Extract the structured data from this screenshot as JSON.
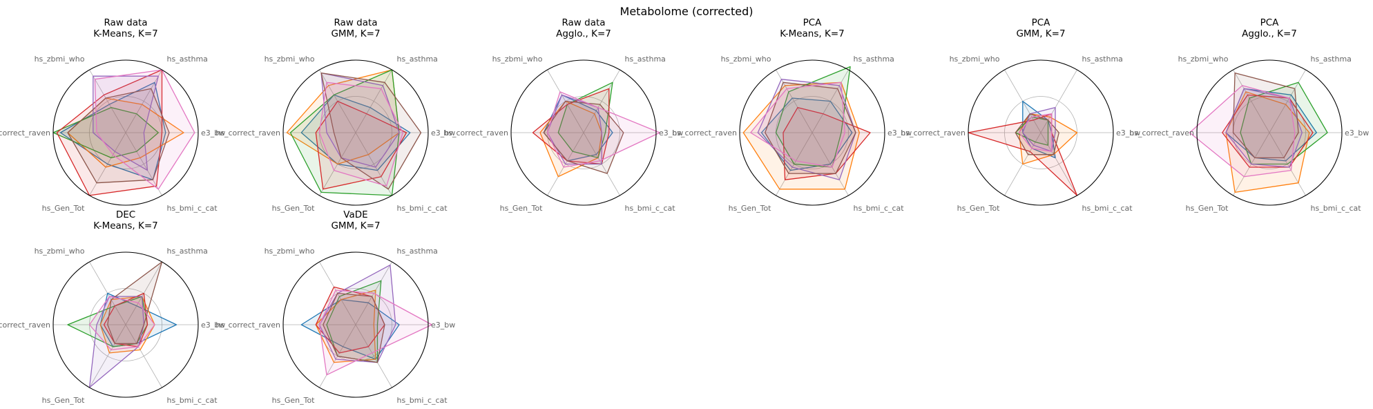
{
  "figure": {
    "title": "Metabolome (corrected)"
  },
  "chart_data": {
    "type": "radar",
    "axes": [
      "e3_bw",
      "hs_asthma",
      "hs_zbmi_who",
      "hs_correct_raven",
      "hs_Gen_Tot",
      "hs_bmi_c_cat"
    ],
    "grid": true,
    "series_colors": [
      "#1f77b4",
      "#ff7f0e",
      "#2ca02c",
      "#d62728",
      "#9467bd",
      "#8c564b",
      "#e377c2"
    ],
    "subplots": [
      {
        "title": [
          "Raw data",
          "K-Means, K=7"
        ],
        "series": [
          {
            "values": [
              0.55,
              0.8,
              0.45,
              0.9,
              0.5,
              0.75
            ]
          },
          {
            "values": [
              0.8,
              0.45,
              0.55,
              0.8,
              0.55,
              0.4
            ]
          },
          {
            "values": [
              0.45,
              0.3,
              0.4,
              1.0,
              0.4,
              0.3
            ]
          },
          {
            "values": [
              0.5,
              1.0,
              0.6,
              0.95,
              1.0,
              0.85
            ]
          },
          {
            "values": [
              0.25,
              0.9,
              0.9,
              0.45,
              0.3,
              0.6
            ]
          },
          {
            "values": [
              0.6,
              0.7,
              0.55,
              0.8,
              0.8,
              0.75
            ]
          },
          {
            "values": [
              0.95,
              1.0,
              0.85,
              0.4,
              0.35,
              0.9
            ]
          }
        ]
      },
      {
        "title": [
          "Raw data",
          "GMM, K=7"
        ],
        "series": [
          {
            "values": [
              0.75,
              0.4,
              0.6,
              0.75,
              0.5,
              0.6
            ]
          },
          {
            "values": [
              0.6,
              1.0,
              0.75,
              0.95,
              0.5,
              0.35
            ]
          },
          {
            "values": [
              0.6,
              1.0,
              0.6,
              0.9,
              0.95,
              1.0
            ]
          },
          {
            "values": [
              0.7,
              0.3,
              0.5,
              0.55,
              0.9,
              0.7
            ]
          },
          {
            "values": [
              0.6,
              0.75,
              0.95,
              0.4,
              0.4,
              0.55
            ]
          },
          {
            "values": [
              0.9,
              0.8,
              0.95,
              0.3,
              0.4,
              0.9
            ]
          },
          {
            "values": [
              0.65,
              0.7,
              0.8,
              0.5,
              0.6,
              0.85
            ]
          }
        ]
      },
      {
        "title": [
          "Raw data",
          "Agglo., K=7"
        ],
        "series": [
          {
            "values": [
              0.4,
              0.35,
              0.6,
              0.55,
              0.45,
              0.35
            ]
          },
          {
            "values": [
              0.25,
              0.3,
              0.5,
              0.6,
              0.7,
              0.4
            ]
          },
          {
            "values": [
              0.3,
              0.8,
              0.45,
              0.35,
              0.3,
              0.4
            ]
          },
          {
            "values": [
              0.35,
              0.7,
              0.45,
              0.7,
              0.45,
              0.5
            ]
          },
          {
            "values": [
              0.25,
              0.4,
              0.6,
              0.5,
              0.5,
              0.5
            ]
          },
          {
            "values": [
              0.55,
              0.45,
              0.5,
              0.55,
              0.45,
              0.65
            ]
          },
          {
            "values": [
              1.05,
              0.4,
              0.65,
              0.5,
              0.55,
              0.45
            ]
          }
        ]
      },
      {
        "title": [
          "PCA",
          "K-Means, K=7"
        ],
        "series": [
          {
            "values": [
              0.55,
              0.5,
              0.55,
              0.7,
              0.6,
              0.5
            ]
          },
          {
            "values": [
              0.65,
              0.8,
              0.75,
              0.95,
              0.9,
              0.9
            ]
          },
          {
            "values": [
              0.4,
              1.05,
              0.65,
              0.5,
              0.5,
              0.55
            ]
          },
          {
            "values": [
              0.8,
              0.3,
              0.4,
              0.4,
              0.75,
              0.65
            ]
          },
          {
            "values": [
              0.6,
              0.75,
              0.85,
              0.75,
              0.55,
              0.75
            ]
          },
          {
            "values": [
              0.6,
              0.7,
              0.8,
              0.65,
              0.65,
              0.65
            ]
          },
          {
            "values": [
              0.45,
              0.8,
              0.7,
              0.85,
              0.45,
              0.55
            ]
          }
        ]
      },
      {
        "title": [
          "PCA",
          "GMM, K=7"
        ],
        "series": [
          {
            "values": [
              0.15,
              0.2,
              0.5,
              0.25,
              0.25,
              0.4
            ]
          },
          {
            "values": [
              0.5,
              0.25,
              0.3,
              0.3,
              0.5,
              0.35
            ]
          },
          {
            "values": [
              0.1,
              0.2,
              0.25,
              0.35,
              0.15,
              0.2
            ]
          },
          {
            "values": [
              0.15,
              0.3,
              0.2,
              1.0,
              0.3,
              1.0
            ]
          },
          {
            "values": [
              0.2,
              0.4,
              0.3,
              0.25,
              0.2,
              0.3
            ]
          },
          {
            "values": [
              0.25,
              0.2,
              0.3,
              0.35,
              0.35,
              0.35
            ]
          },
          {
            "values": [
              0.15,
              0.3,
              0.25,
              0.3,
              0.25,
              0.3
            ]
          }
        ]
      },
      {
        "title": [
          "PCA",
          "Agglo., K=7"
        ],
        "series": [
          {
            "values": [
              0.65,
              0.6,
              0.7,
              0.6,
              0.4,
              0.45
            ]
          },
          {
            "values": [
              0.55,
              0.45,
              0.65,
              0.6,
              0.95,
              0.8
            ]
          },
          {
            "values": [
              0.8,
              0.8,
              0.55,
              0.4,
              0.5,
              0.5
            ]
          },
          {
            "values": [
              0.6,
              0.55,
              0.6,
              0.65,
              0.55,
              0.55
            ]
          },
          {
            "values": [
              0.45,
              0.55,
              0.7,
              0.6,
              0.5,
              0.55
            ]
          },
          {
            "values": [
              0.4,
              0.7,
              0.95,
              0.5,
              0.4,
              0.4
            ]
          },
          {
            "values": [
              0.35,
              0.55,
              0.75,
              1.1,
              0.7,
              0.6
            ]
          }
        ]
      },
      {
        "title": [
          "DEC",
          "K-Means, K=7"
        ],
        "series": [
          {
            "values": [
              0.7,
              0.3,
              0.5,
              0.35,
              0.35,
              0.3
            ]
          },
          {
            "values": [
              0.4,
              0.45,
              0.4,
              0.35,
              0.45,
              0.4
            ]
          },
          {
            "values": [
              0.3,
              0.45,
              0.3,
              0.8,
              0.35,
              0.3
            ]
          },
          {
            "values": [
              0.3,
              0.5,
              0.3,
              0.3,
              0.3,
              0.35
            ]
          },
          {
            "values": [
              0.25,
              0.45,
              0.45,
              0.4,
              1.0,
              0.35
            ]
          },
          {
            "values": [
              0.25,
              1.0,
              0.4,
              0.25,
              0.3,
              0.3
            ]
          },
          {
            "values": [
              0.4,
              0.35,
              0.45,
              0.5,
              0.4,
              0.35
            ]
          }
        ]
      },
      {
        "title": [
          "VaDE",
          "GMM, K=7"
        ],
        "series": [
          {
            "values": [
              0.6,
              0.35,
              0.4,
              0.75,
              0.35,
              0.55
            ]
          },
          {
            "values": [
              0.25,
              0.55,
              0.4,
              0.55,
              0.6,
              0.55
            ]
          },
          {
            "values": [
              0.3,
              0.7,
              0.45,
              0.4,
              0.5,
              0.6
            ]
          },
          {
            "values": [
              0.4,
              0.45,
              0.6,
              0.55,
              0.45,
              0.35
            ]
          },
          {
            "values": [
              0.55,
              0.95,
              0.5,
              0.5,
              0.55,
              0.6
            ]
          },
          {
            "values": [
              0.4,
              0.45,
              0.5,
              0.45,
              0.5,
              0.6
            ]
          },
          {
            "values": [
              1.05,
              0.5,
              0.55,
              0.5,
              0.8,
              0.45
            ]
          }
        ]
      }
    ]
  }
}
